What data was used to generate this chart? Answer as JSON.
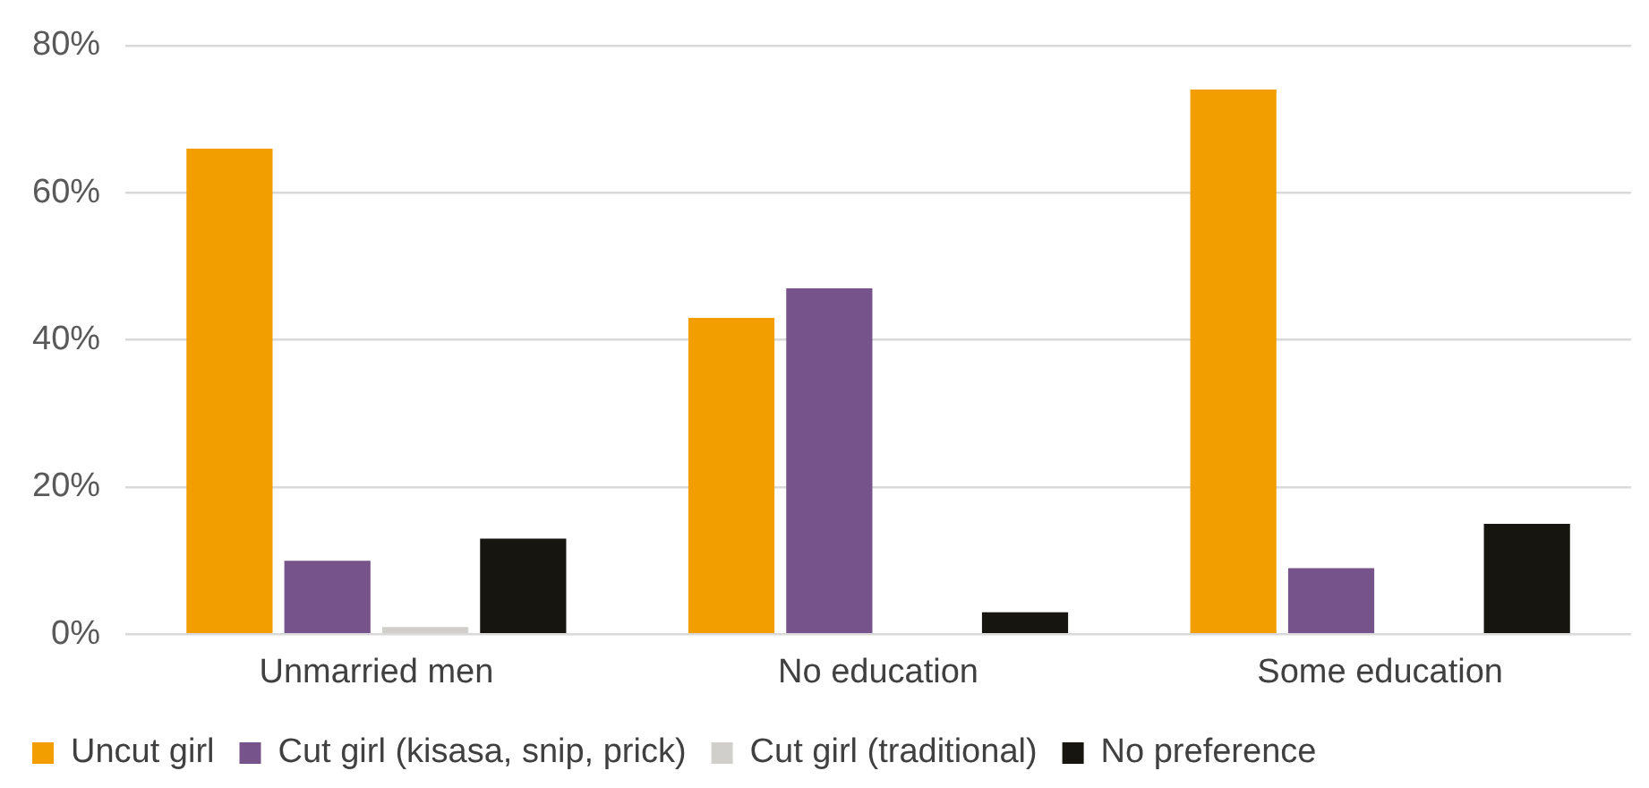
{
  "chart_data": {
    "type": "bar",
    "categories": [
      "Unmarried men",
      "No education",
      "Some education"
    ],
    "series": [
      {
        "name": "Uncut girl",
        "color": "#f29d00",
        "values": [
          66,
          43,
          74
        ]
      },
      {
        "name": "Cut girl (kisasa, snip, prick)",
        "color": "#77538b",
        "values": [
          10,
          47,
          9
        ]
      },
      {
        "name": "Cut girl (traditional)",
        "color": "#d0cfcb",
        "values": [
          1,
          0,
          0
        ]
      },
      {
        "name": "No preference",
        "color": "#16150f",
        "values": [
          13,
          3,
          15
        ]
      }
    ],
    "ylim": [
      0,
      80
    ],
    "yticks": [
      {
        "value": 0,
        "label": "0%"
      },
      {
        "value": 20,
        "label": "20%"
      },
      {
        "value": 40,
        "label": "40%"
      },
      {
        "value": 60,
        "label": "60%"
      },
      {
        "value": 80,
        "label": "80%"
      }
    ],
    "grid": "y",
    "legend": "bottom"
  }
}
